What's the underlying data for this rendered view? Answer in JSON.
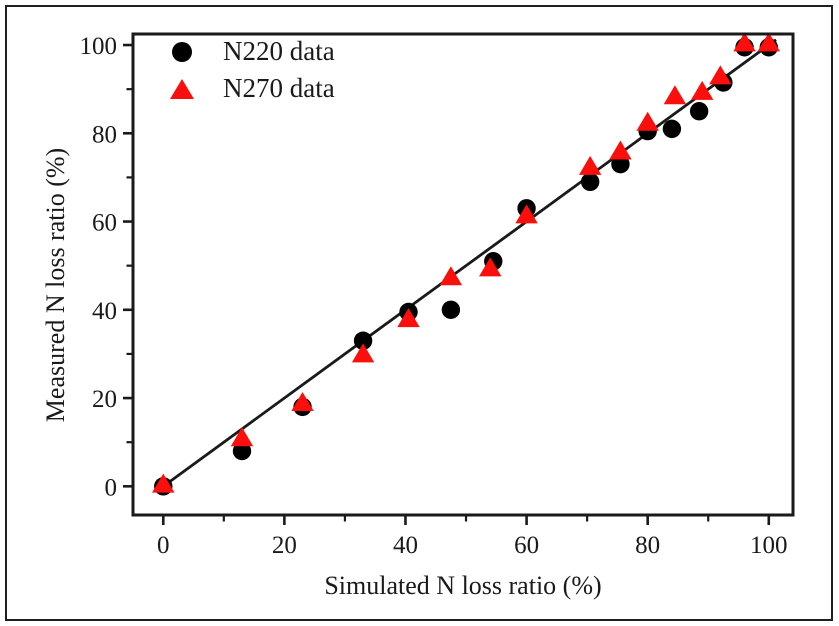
{
  "chart_data": {
    "type": "scatter",
    "title": "",
    "xlabel": "Simulated N loss ratio (%)",
    "ylabel": "Measured N loss ratio (%)",
    "xlim": [
      -5,
      104
    ],
    "ylim": [
      -6.5,
      102.5
    ],
    "x_ticks_major": [
      0,
      20,
      40,
      60,
      80,
      100
    ],
    "x_ticks_minor": [
      10,
      30,
      50,
      70,
      90
    ],
    "y_ticks_major": [
      0,
      20,
      40,
      60,
      80,
      100
    ],
    "y_ticks_minor": [
      10,
      30,
      50,
      70,
      90
    ],
    "grid": false,
    "legend_position": "top-left-inside",
    "axis_color": "#1a1a1a",
    "reference_line": {
      "type": "1:1 line",
      "from": [
        -0.2,
        -0.2
      ],
      "to": [
        101.2,
        101.2
      ],
      "color": "#1a1a1a"
    },
    "series": [
      {
        "name": "N220 data",
        "marker": "circle",
        "color": "#000000",
        "points": [
          [
            0,
            0
          ],
          [
            13,
            8
          ],
          [
            23,
            18
          ],
          [
            33,
            33
          ],
          [
            40.5,
            39.5
          ],
          [
            47.5,
            40
          ],
          [
            54.5,
            51
          ],
          [
            60,
            63
          ],
          [
            70.5,
            69
          ],
          [
            75.5,
            73
          ],
          [
            80,
            80.5
          ],
          [
            84,
            81
          ],
          [
            88.5,
            85
          ],
          [
            92.5,
            91.5
          ],
          [
            96,
            99.5
          ],
          [
            100,
            99.5
          ]
        ]
      },
      {
        "name": "N270 data",
        "marker": "triangle",
        "color": "#fa0f0c",
        "points": [
          [
            0,
            0.5
          ],
          [
            13,
            11
          ],
          [
            23,
            19
          ],
          [
            33,
            30
          ],
          [
            40.5,
            38
          ],
          [
            47.5,
            47.5
          ],
          [
            54,
            49.5
          ],
          [
            60,
            61.5
          ],
          [
            70.5,
            72.5
          ],
          [
            75.5,
            76
          ],
          [
            80,
            82.5
          ],
          [
            84.5,
            88.5
          ],
          [
            89,
            89.5
          ],
          [
            92,
            93
          ],
          [
            96,
            100.5
          ],
          [
            100,
            100.5
          ]
        ]
      }
    ]
  },
  "legend": {
    "items": [
      {
        "label": "N220 data",
        "symbol": "black-circle"
      },
      {
        "label": "N270 data",
        "symbol": "red-triangle"
      }
    ]
  }
}
